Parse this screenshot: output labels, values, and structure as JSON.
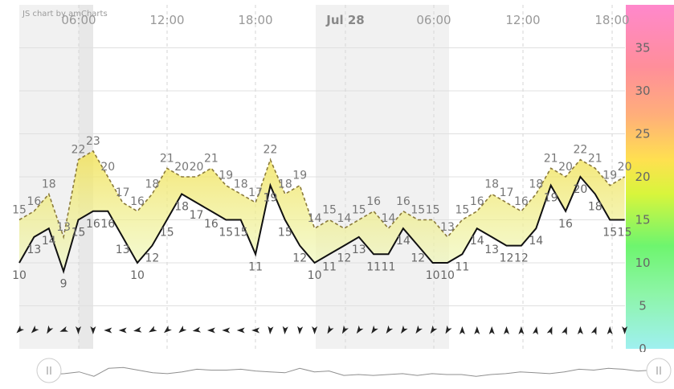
{
  "credit": "JS chart by amCharts",
  "colors": {
    "max_line": "#8a7a3a",
    "min_line": "#111111",
    "fill_top": "#f2e25a",
    "fill_bottom": "#eef8b8",
    "night_band": "#f1f1f1",
    "grid": "#e0e0e0",
    "arrow": "#222222"
  },
  "chart_data": {
    "type": "area",
    "x_axis": {
      "ticks": [
        "06:00",
        "12:00",
        "18:00",
        "Jul 28",
        "06:00",
        "12:00",
        "18:00"
      ],
      "bold_tick": "Jul 28",
      "position": "top"
    },
    "y_axis": {
      "ticks": [
        0,
        5,
        10,
        15,
        20,
        25,
        30,
        35
      ],
      "range": [
        0,
        40
      ],
      "position": "right",
      "color_scale": true
    },
    "grid": true,
    "series": [
      {
        "values": [
          15,
          16,
          18,
          13,
          22,
          23,
          20,
          17,
          16,
          18,
          21,
          20,
          20,
          21,
          19,
          18,
          17,
          22,
          18,
          19,
          14,
          15,
          14,
          15,
          16,
          14,
          16,
          15,
          15,
          13,
          15,
          16,
          18,
          17,
          16,
          18,
          21,
          20,
          22,
          21,
          19,
          20
        ]
      },
      {
        "values": [
          10,
          13,
          14,
          9,
          15,
          16,
          16,
          13,
          10,
          12,
          15,
          18,
          17,
          16,
          15,
          15,
          11,
          19,
          15,
          12,
          10,
          11,
          12,
          13,
          11,
          11,
          14,
          12,
          10,
          10,
          11,
          14,
          13,
          12,
          12,
          14,
          19,
          16,
          20,
          18,
          15,
          15
        ]
      }
    ],
    "wind_direction_deg": [
      225,
      225,
      210,
      250,
      180,
      180,
      270,
      270,
      260,
      240,
      230,
      230,
      260,
      270,
      270,
      270,
      270,
      185,
      185,
      185,
      180,
      210,
      210,
      215,
      215,
      215,
      215,
      215,
      215,
      210,
      0,
      0,
      0,
      0,
      0,
      10,
      20,
      20,
      0,
      20,
      0,
      180
    ]
  }
}
